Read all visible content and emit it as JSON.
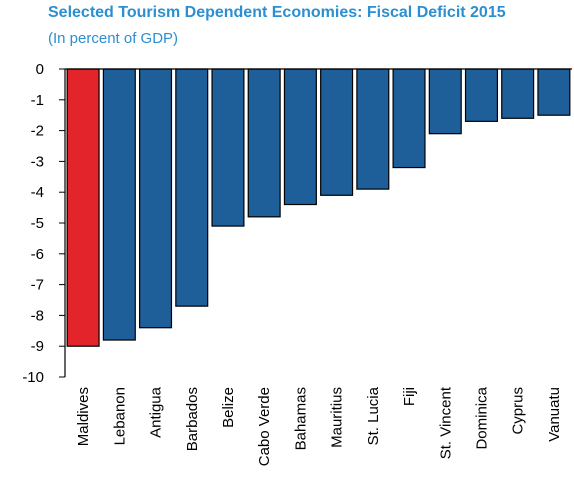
{
  "chart_data": {
    "type": "bar",
    "title": "Selected Tourism Dependent Economies: Fiscal Deficit 2015",
    "subtitle": "(In percent of GDP)",
    "xlabel": "",
    "ylabel": "",
    "ylim": [
      -10,
      0
    ],
    "yticks": [
      0,
      -1,
      -2,
      -3,
      -4,
      -5,
      -6,
      -7,
      -8,
      -9,
      -10
    ],
    "grid": false,
    "categories": [
      "Maldives",
      "Lebanon",
      "Antigua",
      "Barbados",
      "Belize",
      "Cabo Verde",
      "Bahamas",
      "Mauritius",
      "St. Lucia",
      "Fiji",
      "St. Vincent",
      "Dominica",
      "Cyprus",
      "Vanuatu"
    ],
    "values": [
      -9.0,
      -8.8,
      -8.4,
      -7.7,
      -5.1,
      -4.8,
      -4.4,
      -4.1,
      -3.9,
      -3.2,
      -2.1,
      -1.7,
      -1.6,
      -1.5
    ],
    "colors": {
      "highlight": "#e3242b",
      "bar": "#1f5f99",
      "title": "#2b8fd0",
      "axis": "#000000"
    },
    "highlight_index": 0
  }
}
